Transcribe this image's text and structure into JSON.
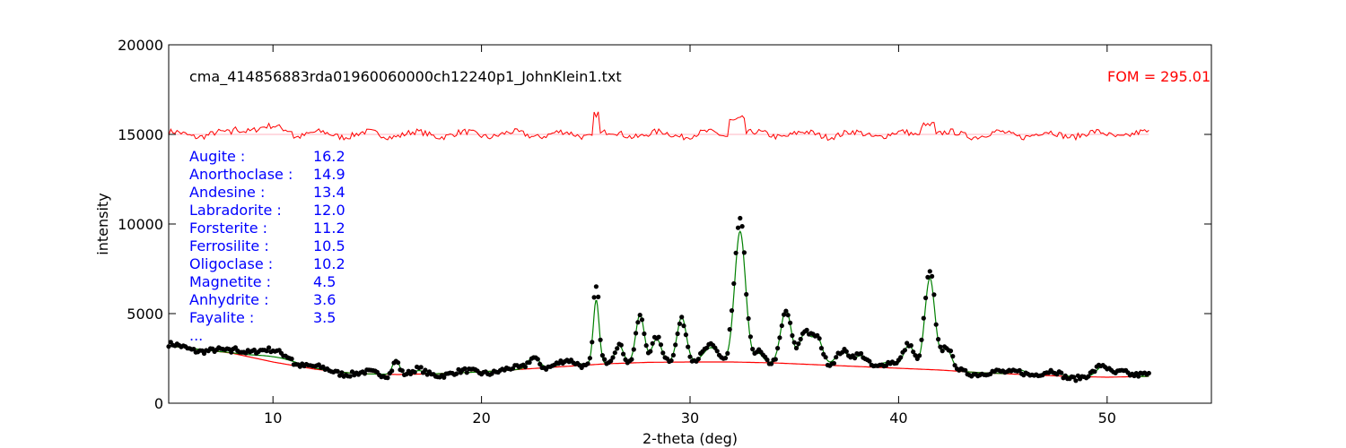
{
  "chart_data": {
    "type": "line",
    "title": "",
    "filename_label": "cma_414856883rda01960060000ch12240p1_JohnKlein1.txt",
    "fom_label": "FOM = 295.01",
    "xlabel": "2-theta (deg)",
    "ylabel": "intensity",
    "xlim": [
      5,
      55
    ],
    "ylim": [
      0,
      20000
    ],
    "x_ticks": [
      10,
      20,
      30,
      40,
      50
    ],
    "y_ticks": [
      0,
      5000,
      10000,
      15000,
      20000
    ],
    "grid": false,
    "colors": {
      "observed": "#000000",
      "fit": "#008000",
      "background": "#ff0000",
      "residual": "#ff0000",
      "residual_zero": "#ffb6c1",
      "phase_text": "#0000ff",
      "fom_text": "#ff0000"
    },
    "phases": [
      {
        "name": "Augite :",
        "value": "16.2"
      },
      {
        "name": "Anorthoclase :",
        "value": "14.9"
      },
      {
        "name": "Andesine :",
        "value": "13.4"
      },
      {
        "name": "Labradorite :",
        "value": "12.0"
      },
      {
        "name": "Forsterite :",
        "value": "11.2"
      },
      {
        "name": "Ferrosilite :",
        "value": "10.5"
      },
      {
        "name": "Oligoclase :",
        "value": "10.2"
      },
      {
        "name": "Magnetite :",
        "value": "4.5"
      },
      {
        "name": "Anhydrite :",
        "value": "3.6"
      },
      {
        "name": "Fayalite :",
        "value": "3.5"
      },
      {
        "name": "...",
        "value": ""
      }
    ],
    "residual_offset": 15000,
    "series": [
      {
        "name": "background",
        "x": [
          5,
          8,
          10,
          12,
          14,
          16,
          18,
          20,
          22,
          24,
          26,
          28,
          30,
          32,
          34,
          36,
          38,
          40,
          42,
          44,
          46,
          48,
          50,
          52
        ],
        "y": [
          3200,
          2800,
          2300,
          1900,
          1650,
          1600,
          1650,
          1750,
          1900,
          2050,
          2200,
          2280,
          2300,
          2300,
          2250,
          2150,
          2050,
          1950,
          1850,
          1700,
          1600,
          1500,
          1450,
          1500
        ]
      },
      {
        "name": "peaks",
        "x": [
          10.2,
          15.9,
          17.0,
          22.5,
          24.2,
          25.5,
          26.6,
          27.6,
          28.4,
          29.6,
          31.0,
          32.4,
          33.3,
          34.6,
          35.5,
          36.1,
          37.3,
          38.2,
          39.5,
          40.5,
          41.5,
          42.3,
          45.8,
          47.5,
          49.8,
          50.7
        ],
        "height": [
          300,
          850,
          200,
          700,
          250,
          3600,
          1000,
          2700,
          1300,
          2500,
          800,
          7300,
          500,
          3000,
          1700,
          1500,
          800,
          600,
          300,
          1300,
          5100,
          1200,
          250,
          200,
          600,
          400
        ],
        "width": [
          1.0,
          0.16,
          0.2,
          0.25,
          0.4,
          0.14,
          0.2,
          0.2,
          0.22,
          0.22,
          0.35,
          0.26,
          0.2,
          0.25,
          0.25,
          0.25,
          0.3,
          0.3,
          0.4,
          0.25,
          0.24,
          0.25,
          0.3,
          0.3,
          0.3,
          0.3
        ]
      }
    ]
  }
}
